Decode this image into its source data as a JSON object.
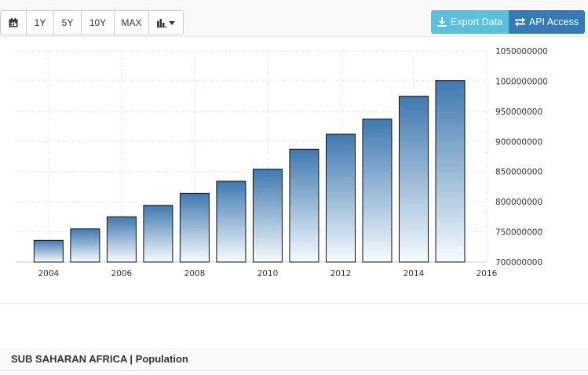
{
  "toolbar": {
    "range_buttons": [
      "1Y",
      "5Y",
      "10Y",
      "MAX"
    ],
    "export_label": "Export Data",
    "api_label": "API Access",
    "icons": {
      "calendar": "calendar-icon",
      "chart_type": "bar-chart-icon",
      "dropdown": "caret-down-icon",
      "export": "download-icon",
      "api": "exchange-icon"
    }
  },
  "chart_data": {
    "type": "bar",
    "x": [
      2004,
      2005,
      2006,
      2007,
      2008,
      2009,
      2010,
      2011,
      2012,
      2013,
      2014,
      2015
    ],
    "values": [
      736000000,
      755000000,
      775000000,
      794000000,
      814000000,
      834000000,
      854000000,
      887000000,
      912000000,
      937000000,
      975000000,
      1001000000
    ],
    "x_ticks": [
      "2004",
      "2006",
      "2008",
      "2010",
      "2012",
      "2014",
      "2016"
    ],
    "x_range": [
      2003.1,
      2016
    ],
    "y_ticks": [
      "700000000",
      "750000000",
      "800000000",
      "850000000",
      "900000000",
      "950000000",
      "1000000000",
      "1050000000"
    ],
    "ylim": [
      700000000,
      1050000000
    ],
    "y_axis_side": "right",
    "grid": true,
    "colors": {
      "bar_top": "#3f78b0",
      "bar_bottom": "#f7fbfe",
      "bar_border": "#111111",
      "grid": "#dddddd"
    }
  },
  "footer": {
    "title": "SUB SAHARAN AFRICA | Population"
  }
}
